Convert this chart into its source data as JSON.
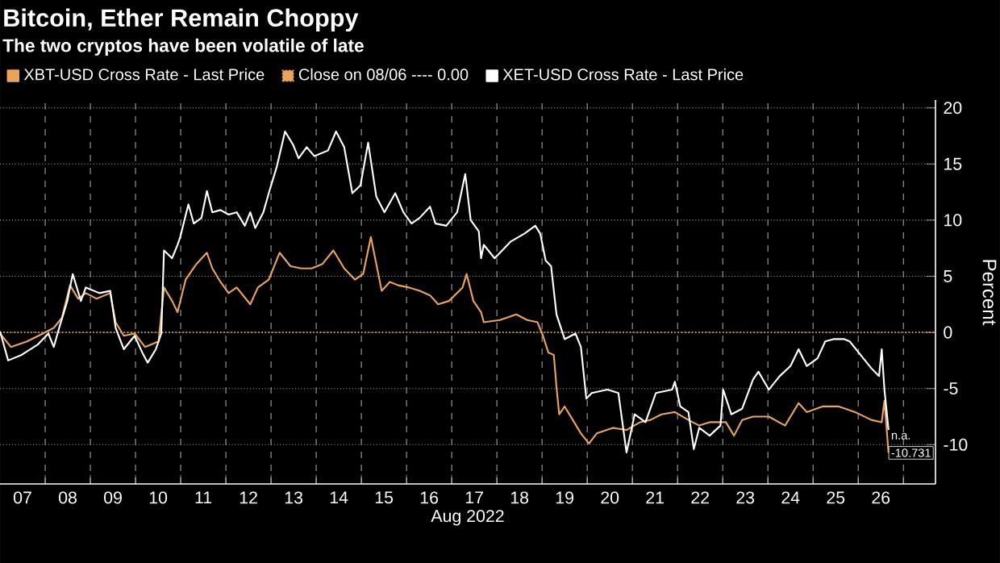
{
  "chart_data": {
    "type": "line",
    "title": "Bitcoin, Ether Remain Choppy",
    "subtitle": "The two cryptos have been volatile of late",
    "xlabel": "Aug 2022",
    "ylabel": "Percent",
    "series": [
      {
        "name": "XBT-USD Cross Rate - Last Price",
        "color": "#e8a45a",
        "x": [
          7.0,
          7.24,
          7.6,
          7.95,
          8.19,
          8.37,
          8.55,
          8.73,
          8.9,
          9.14,
          9.44,
          9.56,
          9.74,
          9.98,
          10.21,
          10.51,
          10.63,
          10.81,
          10.93,
          11.11,
          11.35,
          11.58,
          11.7,
          11.88,
          12.06,
          12.24,
          12.54,
          12.71,
          12.95,
          13.19,
          13.43,
          13.67,
          13.9,
          14.14,
          14.38,
          14.62,
          14.86,
          15.04,
          15.21,
          15.33,
          15.45,
          15.63,
          15.81,
          16.05,
          16.29,
          16.52,
          16.7,
          16.94,
          17.24,
          17.33,
          17.48,
          17.65,
          17.71,
          18.07,
          18.43,
          18.67,
          18.9,
          19.02,
          19.14,
          19.26,
          19.32,
          19.38,
          19.5,
          19.68,
          19.86,
          20.04,
          20.21,
          20.57,
          20.87,
          21.17,
          21.4,
          21.64,
          21.94,
          22.24,
          22.48,
          22.71,
          23.07,
          23.25,
          23.43,
          23.67,
          24.02,
          24.38,
          24.68,
          24.86,
          25.21,
          25.57,
          25.93,
          26.29,
          26.52,
          26.58,
          26.67
        ],
        "values": [
          -0.1,
          -1.3,
          -0.8,
          -0.1,
          0.4,
          1.3,
          4.2,
          3.0,
          3.5,
          3.0,
          3.5,
          0.9,
          -0.3,
          -0.1,
          -1.3,
          -0.8,
          4.0,
          2.8,
          1.8,
          4.7,
          6.1,
          7.1,
          5.7,
          4.5,
          3.5,
          4.0,
          2.5,
          4.0,
          4.7,
          7.1,
          5.9,
          5.7,
          5.7,
          6.1,
          7.3,
          5.7,
          4.7,
          5.2,
          8.5,
          6.1,
          3.7,
          4.5,
          4.2,
          4.0,
          3.7,
          3.3,
          2.5,
          2.8,
          4.0,
          5.2,
          2.8,
          1.8,
          0.9,
          1.1,
          1.6,
          1.1,
          0.9,
          -0.3,
          -1.8,
          -2.0,
          -4.9,
          -7.3,
          -6.6,
          -7.8,
          -9.0,
          -9.9,
          -9.0,
          -8.5,
          -8.7,
          -8.0,
          -7.8,
          -7.3,
          -7.1,
          -7.8,
          -8.3,
          -8.0,
          -8.0,
          -9.2,
          -7.8,
          -7.5,
          -7.5,
          -8.3,
          -6.3,
          -7.1,
          -6.6,
          -6.6,
          -7.1,
          -7.8,
          -8.0,
          -6.1,
          -10.731
        ]
      },
      {
        "name": "XET-USD Cross Rate - Last Price",
        "color": "#ffffff",
        "x": [
          7.0,
          7.18,
          7.48,
          7.83,
          8.07,
          8.19,
          8.31,
          8.49,
          8.61,
          8.79,
          8.9,
          9.2,
          9.44,
          9.56,
          9.74,
          9.98,
          10.15,
          10.27,
          10.45,
          10.57,
          10.63,
          10.81,
          10.93,
          10.99,
          11.17,
          11.29,
          11.46,
          11.58,
          11.7,
          11.88,
          12.06,
          12.24,
          12.42,
          12.54,
          12.65,
          12.83,
          12.95,
          13.13,
          13.31,
          13.49,
          13.61,
          13.79,
          13.96,
          14.26,
          14.44,
          14.62,
          14.8,
          14.98,
          15.15,
          15.33,
          15.51,
          15.75,
          15.93,
          16.11,
          16.29,
          16.52,
          16.64,
          16.88,
          17.12,
          17.3,
          17.42,
          17.6,
          17.65,
          17.71,
          17.95,
          18.31,
          18.61,
          18.85,
          18.96,
          19.08,
          19.2,
          19.32,
          19.5,
          19.74,
          19.86,
          19.98,
          20.1,
          20.45,
          20.69,
          20.87,
          21.05,
          21.29,
          21.52,
          21.88,
          21.94,
          22.06,
          22.24,
          22.36,
          22.48,
          22.71,
          22.95,
          23.01,
          23.19,
          23.43,
          23.67,
          23.79,
          24.02,
          24.26,
          24.5,
          24.68,
          24.86,
          25.1,
          25.27,
          25.45,
          25.69,
          25.81,
          26.05,
          26.29,
          26.46,
          26.52,
          26.58,
          26.67
        ],
        "values": [
          0.1,
          -2.5,
          -2.0,
          -1.1,
          -0.1,
          -1.3,
          0.4,
          2.8,
          5.2,
          2.8,
          4.0,
          3.5,
          3.7,
          0.4,
          -1.5,
          -0.3,
          -1.8,
          -2.7,
          -1.5,
          -0.1,
          7.3,
          6.6,
          7.8,
          8.5,
          11.4,
          9.7,
          10.2,
          12.6,
          10.7,
          10.9,
          10.5,
          10.7,
          9.5,
          10.7,
          9.3,
          10.7,
          12.4,
          14.8,
          17.9,
          16.7,
          15.5,
          16.5,
          15.7,
          16.2,
          17.9,
          16.5,
          12.4,
          13.1,
          16.9,
          12.1,
          10.7,
          12.4,
          10.7,
          9.7,
          10.2,
          11.2,
          9.7,
          9.5,
          10.7,
          14.1,
          10.0,
          9.0,
          6.6,
          7.8,
          6.6,
          8.1,
          8.8,
          9.5,
          8.8,
          6.4,
          5.9,
          1.6,
          -0.6,
          -0.1,
          -1.3,
          -5.9,
          -5.4,
          -5.1,
          -5.4,
          -10.7,
          -7.3,
          -8.0,
          -5.4,
          -5.1,
          -4.4,
          -6.6,
          -7.1,
          -10.4,
          -8.5,
          -9.2,
          -8.3,
          -5.1,
          -7.3,
          -6.8,
          -4.2,
          -3.5,
          -5.1,
          -3.9,
          -3.0,
          -1.5,
          -3.0,
          -2.3,
          -0.8,
          -0.6,
          -0.6,
          -0.8,
          -2.0,
          -3.2,
          -3.9,
          -1.5,
          -5.1,
          -8.7
        ]
      }
    ],
    "ref_lines": [
      {
        "axis": "y",
        "value": 0,
        "label": "Close on 08/06 ---- 0.00",
        "color": "#e8a45a",
        "line_style": "dotted"
      }
    ],
    "annotations": [
      {
        "text": "n.a.",
        "x": 26.67,
        "y": -8.73
      },
      {
        "text": "-10.731",
        "x": 26.67,
        "y": -10.731
      }
    ],
    "xlim": [
      7,
      27.71
    ],
    "ylim": [
      -13.5,
      20.7
    ],
    "xticks": [
      {
        "value": 7.5,
        "label": "07"
      },
      {
        "value": 8,
        "label": null
      },
      {
        "value": 8.5,
        "label": "08"
      },
      {
        "value": 9,
        "label": null
      },
      {
        "value": 9.5,
        "label": "09"
      },
      {
        "value": 10,
        "label": null
      },
      {
        "value": 10.5,
        "label": "10"
      },
      {
        "value": 11,
        "label": null
      },
      {
        "value": 11.5,
        "label": "11"
      },
      {
        "value": 12,
        "label": null
      },
      {
        "value": 12.5,
        "label": "12"
      },
      {
        "value": 13,
        "label": null
      },
      {
        "value": 13.5,
        "label": "13"
      },
      {
        "value": 14,
        "label": null
      },
      {
        "value": 14.5,
        "label": "14"
      },
      {
        "value": 15,
        "label": null
      },
      {
        "value": 15.5,
        "label": "15"
      },
      {
        "value": 16,
        "label": null
      },
      {
        "value": 16.5,
        "label": "16"
      },
      {
        "value": 17,
        "label": null
      },
      {
        "value": 17.5,
        "label": "17"
      },
      {
        "value": 18,
        "label": null
      },
      {
        "value": 18.5,
        "label": "18"
      },
      {
        "value": 19,
        "label": null
      },
      {
        "value": 19.5,
        "label": "19"
      },
      {
        "value": 20,
        "label": null
      },
      {
        "value": 20.5,
        "label": "20"
      },
      {
        "value": 21,
        "label": null
      },
      {
        "value": 21.5,
        "label": "21"
      },
      {
        "value": 22,
        "label": null
      },
      {
        "value": 22.5,
        "label": "22"
      },
      {
        "value": 23,
        "label": null
      },
      {
        "value": 23.5,
        "label": "23"
      },
      {
        "value": 24,
        "label": null
      },
      {
        "value": 24.5,
        "label": "24"
      },
      {
        "value": 25,
        "label": null
      },
      {
        "value": 25.5,
        "label": "25"
      },
      {
        "value": 26,
        "label": null
      },
      {
        "value": 26.5,
        "label": "26"
      },
      {
        "value": 27,
        "label": null
      }
    ],
    "yticks": [
      -10,
      -5,
      0,
      5,
      10,
      15,
      20
    ],
    "grid": true,
    "legend": "top left",
    "marker": "none",
    "line_style": "solid"
  }
}
